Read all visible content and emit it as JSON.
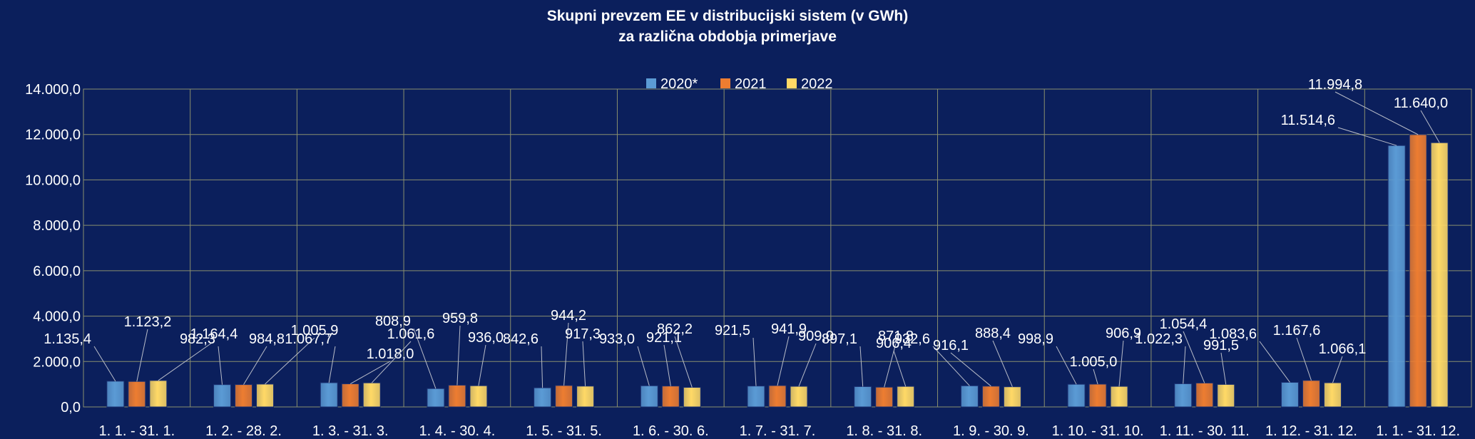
{
  "chart_data": {
    "type": "bar",
    "title": "Skupni prevzem EE v distribucijski sistem (v GWh)",
    "subtitle": "za različna obdobja primerjave",
    "xlabel": "",
    "ylabel": "",
    "ylim": [
      0,
      14000
    ],
    "ytick_values": [
      0,
      2000,
      4000,
      6000,
      8000,
      10000,
      12000,
      14000
    ],
    "ytick_labels": [
      "0,0",
      "2.000,0",
      "4.000,0",
      "6.000,0",
      "8.000,0",
      "10.000,0",
      "12.000,0",
      "14.000,0"
    ],
    "grid": true,
    "legend_position": "top-center",
    "categories": [
      "1. 1. - 31. 1.",
      "1. 2. - 28. 2.",
      "1. 3. - 31. 3.",
      "1. 4. - 30. 4.",
      "1. 5. - 31. 5.",
      "1. 6. - 30. 6.",
      "1. 7. - 31. 7.",
      "1. 8. - 31. 8.",
      "1. 9. - 30. 9.",
      "1. 10. - 31. 10.",
      "1. 11. - 30. 11.",
      "1. 12. - 31. 12.",
      "1. 1. - 31. 12."
    ],
    "series": [
      {
        "name": "2020*",
        "color": "#5b9bd5",
        "values": [
          1135.4,
          982.3,
          1067.7,
          808.9,
          842.6,
          933.0,
          921.5,
          897.1,
          932.6,
          998.9,
          1022.3,
          1083.6,
          11514.6
        ],
        "labels": [
          "1.135,4",
          "982,3",
          "1.067,7",
          "808,9",
          "842,6",
          "933,0",
          "921,5",
          "897,1",
          "932,6",
          "998,9",
          "1.022,3",
          "1.083,6",
          "11.514,6"
        ]
      },
      {
        "name": "2021",
        "color": "#ed7d31",
        "values": [
          1123.2,
          984.8,
          1018.0,
          959.8,
          944.2,
          921.1,
          941.9,
          871.8,
          916.1,
          1005.0,
          1054.4,
          1167.6,
          11994.8
        ],
        "labels": [
          "1.123,2",
          "984,8",
          "1.018,0",
          "959,8",
          "944,2",
          "921,1",
          "941,9",
          "871,8",
          "916,1",
          "1.005,0",
          "1.054,4",
          "1.167,6",
          "11.994,8"
        ]
      },
      {
        "name": "2022",
        "color": "#ffd966",
        "values": [
          1164.4,
          1005.9,
          1061.6,
          936.0,
          917.3,
          862.2,
          909.0,
          906.4,
          888.4,
          906.9,
          991.5,
          1066.1,
          11640.0
        ],
        "labels": [
          "1.164,4",
          "1.005,9",
          "1.061,6",
          "936,0",
          "917,3",
          "862,2",
          "909,0",
          "906,4",
          "888,4",
          "906,9",
          "991,5",
          "1.066,1",
          "11.640,0"
        ]
      }
    ]
  }
}
